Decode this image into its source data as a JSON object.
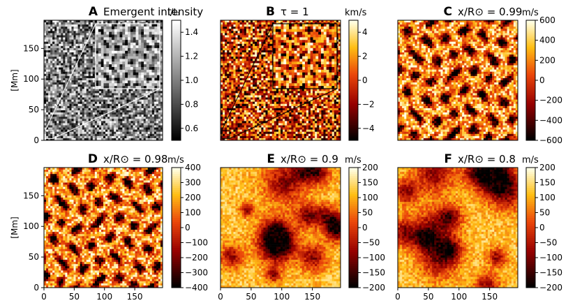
{
  "chart_data": [
    {
      "type": "heatmap",
      "panel_letter": "A",
      "title": "Emergent intensity",
      "colorbar_label": "I/I₀",
      "colormap": "gray",
      "xlim": [
        0,
        196
      ],
      "ylim": [
        0,
        196
      ],
      "xticks": [],
      "yticks": [
        0,
        50,
        100,
        150
      ],
      "ylabel": "[Mm]",
      "colorbar_range": [
        0.5,
        1.5
      ],
      "colorbar_ticks": [
        0.6,
        0.8,
        1.0,
        1.2,
        1.4
      ],
      "colorbar_tick_labels": [
        "0.6",
        "0.8",
        "1.0",
        "1.2",
        "1.4"
      ],
      "inset_zoom_box": [
        2,
        3,
        13,
        13
      ],
      "inset_edge_color": "#ffffff"
    },
    {
      "type": "heatmap",
      "panel_letter": "B",
      "title": "τ = 1",
      "colorbar_label": "km/s",
      "colormap": "hot",
      "xlim": [
        0,
        196
      ],
      "ylim": [
        0,
        196
      ],
      "xticks": [],
      "yticks": [],
      "colorbar_range": [
        -5,
        5
      ],
      "colorbar_ticks": [
        -4,
        -2,
        0,
        2,
        4
      ],
      "colorbar_tick_labels": [
        "−4",
        "−2",
        "0",
        "2",
        "4"
      ],
      "inset_zoom_box": [
        2,
        3,
        13,
        13
      ],
      "inset_edge_color": "#000000"
    },
    {
      "type": "heatmap",
      "panel_letter": "C",
      "title": "x/R⊙ = 0.99",
      "colorbar_label": "m/s",
      "colormap": "hot",
      "xlim": [
        0,
        196
      ],
      "ylim": [
        0,
        196
      ],
      "xticks": [],
      "yticks": [],
      "colorbar_range": [
        -600,
        600
      ],
      "colorbar_ticks": [
        -600,
        -400,
        -200,
        0,
        200,
        400,
        600
      ],
      "colorbar_tick_labels": [
        "−600",
        "−400",
        "−200",
        "0",
        "200",
        "400",
        "600"
      ]
    },
    {
      "type": "heatmap",
      "panel_letter": "D",
      "title": "x/R⊙ = 0.98",
      "colorbar_label": "m/s",
      "colormap": "hot",
      "xlim": [
        0,
        196
      ],
      "ylim": [
        0,
        196
      ],
      "xticks": [
        0,
        50,
        100,
        150
      ],
      "yticks": [
        0,
        50,
        100,
        150
      ],
      "ylabel": "[Mm]",
      "colorbar_range": [
        -400,
        400
      ],
      "colorbar_ticks": [
        -400,
        -300,
        -200,
        -100,
        0,
        100,
        200,
        300,
        400
      ],
      "colorbar_tick_labels": [
        "−400",
        "−300",
        "−200",
        "−100",
        "0",
        "100",
        "200",
        "300",
        "400"
      ]
    },
    {
      "type": "heatmap",
      "panel_letter": "E",
      "title": "x/R⊙ = 0.9",
      "colorbar_label": "m/s",
      "colormap": "hot",
      "xlim": [
        0,
        196
      ],
      "ylim": [
        0,
        196
      ],
      "xticks": [
        0,
        50,
        100,
        150
      ],
      "yticks": [],
      "colorbar_range": [
        -200,
        200
      ],
      "colorbar_ticks": [
        -200,
        -150,
        -100,
        -50,
        0,
        50,
        100,
        150,
        200
      ],
      "colorbar_tick_labels": [
        "−200",
        "−150",
        "−100",
        "−50",
        "0",
        "50",
        "100",
        "150",
        "200"
      ]
    },
    {
      "type": "heatmap",
      "panel_letter": "F",
      "title": "x/R⊙ = 0.8",
      "colorbar_label": "m/s",
      "colormap": "hot",
      "xlim": [
        0,
        196
      ],
      "ylim": [
        0,
        196
      ],
      "xticks": [
        0,
        50,
        100,
        150
      ],
      "yticks": [],
      "colorbar_range": [
        -200,
        200
      ],
      "colorbar_ticks": [
        -200,
        -150,
        -100,
        -50,
        0,
        50,
        100,
        150,
        200
      ],
      "colorbar_tick_labels": [
        "−200",
        "−150",
        "−100",
        "−50",
        "0",
        "50",
        "100",
        "150",
        "200"
      ]
    }
  ]
}
